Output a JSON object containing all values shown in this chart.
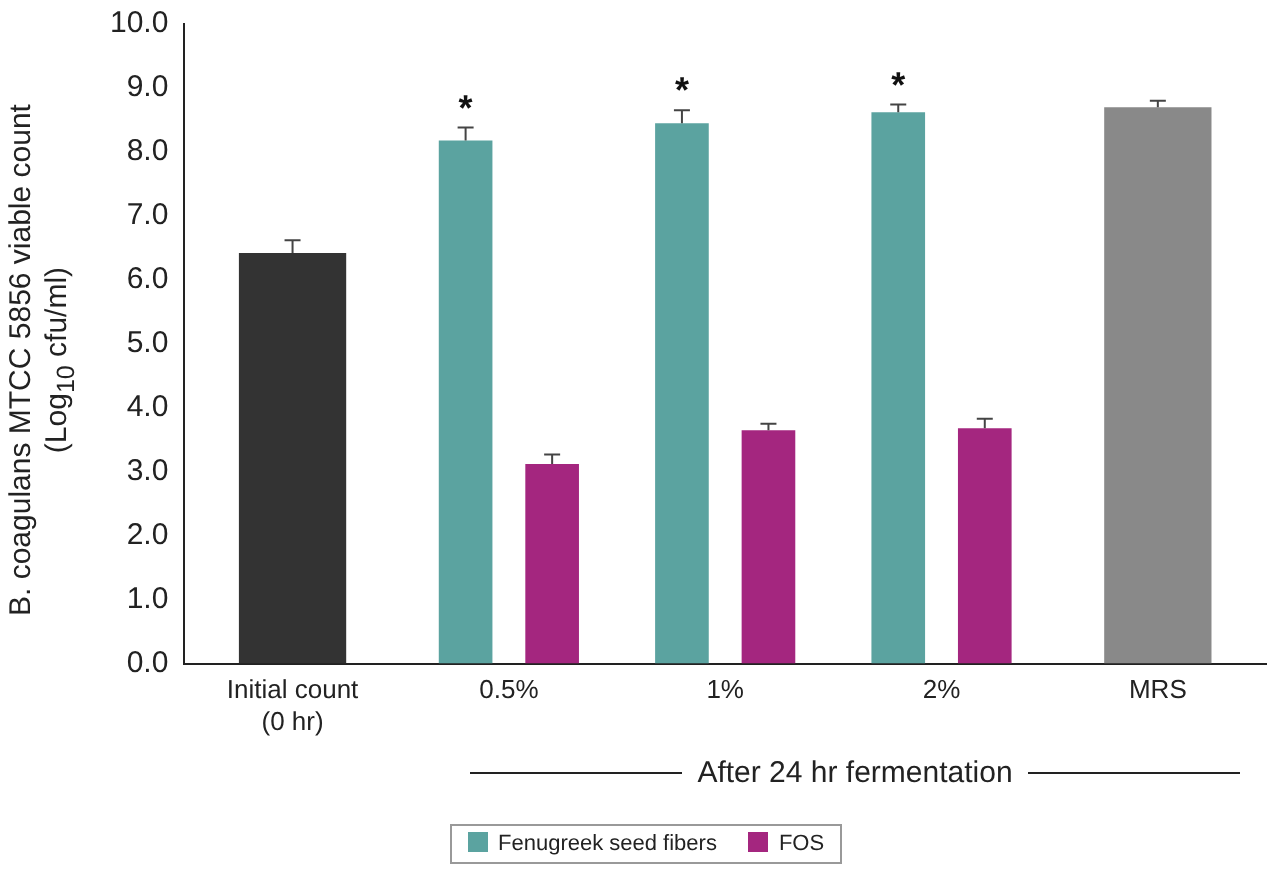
{
  "chart_data": {
    "type": "bar",
    "ylabel": "B. coagulans MTCC 5856 viable count (Log$_{10}$ cfu/ml)",
    "xlabel": "After 24 hr fermentation",
    "categories": [
      "Initial count\n(0 hr)",
      "0.5%",
      "1%",
      "2%",
      "MRS"
    ],
    "series": [
      {
        "name": "Fenugreek seed fibers",
        "color": "#5ba3a0",
        "colors": [
          "#333333",
          "#5ba3a0",
          "#5ba3a0",
          "#5ba3a0",
          "#898989"
        ],
        "values": [
          6.42,
          8.18,
          8.45,
          8.62,
          8.7
        ],
        "errors": [
          0.2,
          0.2,
          0.2,
          0.12,
          0.1
        ]
      },
      {
        "name": "FOS",
        "color": "#a4267f",
        "values": [
          null,
          3.12,
          3.65,
          3.68,
          null
        ],
        "errors": [
          null,
          0.15,
          0.1,
          0.15,
          null
        ]
      }
    ],
    "ylim": [
      0,
      10
    ],
    "yticks": [
      {
        "value": 0,
        "label": "0.0"
      },
      {
        "value": 1,
        "label": "1.0"
      },
      {
        "value": 2,
        "label": "2.0"
      },
      {
        "value": 3,
        "label": "3.0"
      },
      {
        "value": 4,
        "label": "4.0"
      },
      {
        "value": 5,
        "label": "5.0"
      },
      {
        "value": 6,
        "label": "6.0"
      },
      {
        "value": 7,
        "label": "7.0"
      },
      {
        "value": 8,
        "label": "8.0"
      },
      {
        "value": 9,
        "label": "9.0"
      },
      {
        "value": 10,
        "label": "10.0"
      }
    ],
    "annotations": [
      "*",
      "*",
      "*"
    ],
    "grid": false,
    "legend": "bottom"
  }
}
